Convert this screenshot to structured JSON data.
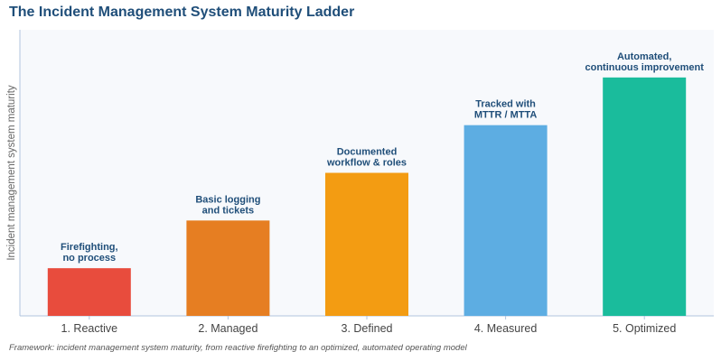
{
  "title": "The Incident Management System Maturity Ladder",
  "footnote": "Framework: incident management system maturity, from reactive firefighting to an optimized, automated operating model",
  "colors": {
    "title": "#1f4e79",
    "annotation": "#1f4e79",
    "plot_background": "#f7f9fc",
    "axis": "#b0c4de"
  },
  "chart_data": {
    "type": "bar",
    "title": "The Incident Management System Maturity Ladder",
    "xlabel": "",
    "ylabel": "Incident management system maturity",
    "categories": [
      "1. Reactive",
      "2. Managed",
      "3. Defined",
      "4. Measured",
      "5. Optimized"
    ],
    "values": [
      1,
      2,
      3,
      4,
      5
    ],
    "ylim": [
      0,
      6
    ],
    "bar_colors": [
      "#e84c3d",
      "#e67e22",
      "#f39c12",
      "#5dade2",
      "#1abc9c"
    ],
    "annotations": [
      [
        "Firefighting,",
        "no process"
      ],
      [
        "Basic logging",
        "and tickets"
      ],
      [
        "Documented",
        "workflow & roles"
      ],
      [
        "Tracked with",
        "MTTR / MTTA"
      ],
      [
        "Automated,",
        "continuous improvement"
      ]
    ],
    "grid": false,
    "yticks": false,
    "legend": "none"
  }
}
